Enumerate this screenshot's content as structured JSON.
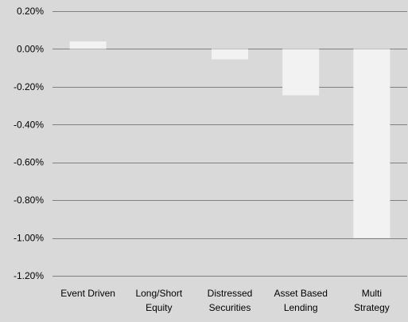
{
  "colors": {
    "background": "#d9d9d9",
    "bar": "#f2f2f2",
    "gridline": "#808080",
    "text": "#000000"
  },
  "chart_data": {
    "type": "bar",
    "title": "",
    "xlabel": "",
    "ylabel": "",
    "grid": true,
    "legend": "none",
    "categories": [
      [
        "Event Driven"
      ],
      [
        "Long/Short",
        "Equity"
      ],
      [
        "Distressed",
        "Securities"
      ],
      [
        "Asset Based",
        "Lending"
      ],
      [
        "Multi",
        "Strategy"
      ]
    ],
    "values": [
      0.04,
      0.0,
      -0.055,
      -0.245,
      -1.0
    ],
    "ylim": [
      -1.2,
      0.2
    ],
    "yticks": [
      0.2,
      0.0,
      -0.2,
      -0.4,
      -0.6,
      -0.8,
      -1.0,
      -1.2
    ],
    "ytick_labels": [
      "0.20%",
      "0.00%",
      "-0.20%",
      "-0.40%",
      "-0.60%",
      "-0.80%",
      "-1.00%",
      "-1.20%"
    ]
  }
}
